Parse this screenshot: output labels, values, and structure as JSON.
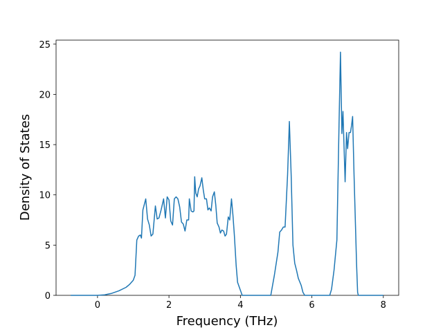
{
  "chart_data": {
    "type": "line",
    "xlabel": "Frequency (THz)",
    "ylabel": "Density of States",
    "xlim": [
      -1.16,
      8.43
    ],
    "ylim": [
      0,
      25.4
    ],
    "xticks": [
      0,
      2,
      4,
      6,
      8
    ],
    "yticks": [
      0,
      5,
      10,
      15,
      20,
      25
    ],
    "x": [
      -0.75,
      0,
      0.2,
      0.4,
      0.6,
      0.8,
      0.9,
      1.0,
      1.05,
      1.1,
      1.15,
      1.2,
      1.23,
      1.27,
      1.35,
      1.4,
      1.45,
      1.5,
      1.55,
      1.62,
      1.67,
      1.72,
      1.78,
      1.85,
      1.9,
      1.95,
      2.0,
      2.05,
      2.1,
      2.15,
      2.2,
      2.25,
      2.3,
      2.35,
      2.4,
      2.45,
      2.5,
      2.55,
      2.57,
      2.62,
      2.67,
      2.7,
      2.72,
      2.75,
      2.79,
      2.83,
      2.87,
      2.92,
      2.96,
      3.0,
      3.05,
      3.09,
      3.13,
      3.18,
      3.22,
      3.27,
      3.31,
      3.35,
      3.4,
      3.44,
      3.48,
      3.53,
      3.57,
      3.61,
      3.66,
      3.7,
      3.75,
      3.79,
      3.83,
      3.88,
      3.92,
      4.0,
      4.05,
      4.5,
      4.85,
      4.95,
      5.05,
      5.1,
      5.15,
      5.2,
      5.25,
      5.32,
      5.37,
      5.42,
      5.47,
      5.52,
      5.57,
      5.62,
      5.7,
      5.75,
      5.8,
      6.5,
      6.55,
      6.62,
      6.7,
      6.76,
      6.8,
      6.84,
      6.87,
      6.9,
      6.93,
      6.97,
      7.0,
      7.04,
      7.08,
      7.11,
      7.14,
      7.18,
      7.22,
      7.25,
      7.28,
      7.3,
      8.0
    ],
    "series": [
      {
        "color": "#1f77b4",
        "values": [
          0,
          0,
          0.05,
          0.2,
          0.45,
          0.8,
          1.1,
          1.5,
          2.0,
          5.5,
          5.9,
          6.0,
          5.7,
          8.5,
          9.6,
          7.6,
          7.0,
          5.9,
          6.1,
          8.9,
          7.6,
          7.7,
          8.5,
          9.6,
          7.7,
          9.8,
          9.5,
          7.4,
          7.0,
          9.6,
          9.8,
          9.6,
          8.8,
          7.3,
          7.1,
          6.4,
          7.5,
          7.5,
          9.6,
          8.4,
          8.3,
          8.4,
          11.8,
          10.2,
          9.8,
          10.6,
          10.9,
          11.7,
          10.5,
          9.6,
          9.6,
          8.5,
          8.7,
          8.4,
          9.8,
          10.3,
          9.0,
          7.2,
          6.8,
          6.2,
          6.5,
          6.4,
          5.9,
          6.1,
          7.8,
          7.5,
          9.6,
          8.0,
          6.0,
          3.0,
          1.3,
          0.5,
          0,
          0,
          0,
          2.0,
          4.3,
          6.3,
          6.5,
          6.8,
          6.8,
          12.0,
          17.3,
          12.0,
          5.0,
          3.2,
          2.5,
          1.7,
          1.0,
          0.3,
          0,
          0,
          0.6,
          2.5,
          5.5,
          17.0,
          24.2,
          16.1,
          18.3,
          14.8,
          11.3,
          16.2,
          14.6,
          16.2,
          16.2,
          16.9,
          17.8,
          12.0,
          7.0,
          3.2,
          0.3,
          0,
          0
        ]
      }
    ]
  }
}
